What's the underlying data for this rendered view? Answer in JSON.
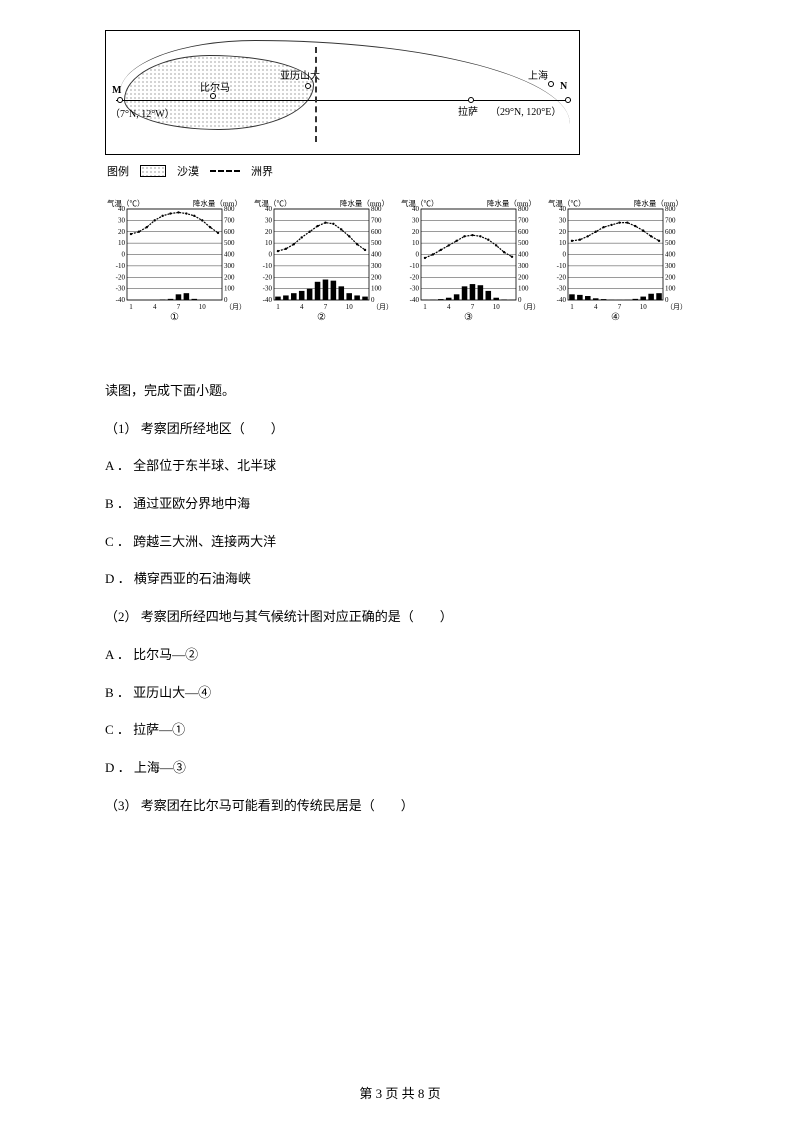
{
  "map": {
    "places": {
      "M": "M",
      "bilma": "比尔马",
      "alexandria": "亚历山大",
      "lhasa": "拉萨",
      "shanghai": "上海",
      "N": "N",
      "coord_left": "（7°N, 12°W）",
      "coord_right": "（29°N, 120°E）"
    },
    "legend": {
      "title": "图例",
      "desert": "沙漠",
      "boundary": "洲界"
    }
  },
  "charts": {
    "temp_axis_label": "气温（℃）",
    "precip_axis_label": "降水量（mm）",
    "x_axis_label": "（月）",
    "temp_ticks": [
      "40",
      "30",
      "20",
      "10",
      "0",
      "-10",
      "-20",
      "-30",
      "-40"
    ],
    "temp_min": -40,
    "temp_max": 40,
    "precip_ticks": [
      "800",
      "700",
      "600",
      "500",
      "400",
      "300",
      "200",
      "100",
      "0"
    ],
    "precip_min": 0,
    "precip_max": 800,
    "x_ticks": [
      "1",
      "4",
      "7",
      "10"
    ],
    "series": [
      {
        "id": "①",
        "temp": [
          18,
          20,
          24,
          30,
          34,
          36,
          37,
          36,
          34,
          30,
          24,
          19
        ],
        "precip": [
          0,
          0,
          0,
          0,
          5,
          10,
          50,
          60,
          10,
          0,
          0,
          0
        ]
      },
      {
        "id": "②",
        "temp": [
          3,
          5,
          9,
          15,
          20,
          25,
          28,
          27,
          22,
          16,
          9,
          4
        ],
        "precip": [
          30,
          40,
          60,
          80,
          100,
          160,
          180,
          170,
          120,
          60,
          40,
          30
        ]
      },
      {
        "id": "③",
        "temp": [
          -3,
          0,
          4,
          8,
          12,
          16,
          17,
          16,
          13,
          8,
          2,
          -2
        ],
        "precip": [
          2,
          4,
          8,
          20,
          50,
          120,
          140,
          130,
          80,
          20,
          5,
          3
        ]
      },
      {
        "id": "④",
        "temp": [
          12,
          13,
          16,
          20,
          24,
          26,
          28,
          28,
          25,
          21,
          16,
          12
        ],
        "precip": [
          50,
          45,
          35,
          15,
          8,
          3,
          2,
          3,
          10,
          30,
          55,
          60
        ]
      }
    ],
    "temp_line_color": "#000000",
    "bar_color": "#000000",
    "grid_color": "#000000",
    "background_color": "#ffffff",
    "chart_border_color": "#000000",
    "line_width": 1.2,
    "bar_width": 0.7,
    "tick_fontsize": 7,
    "label_fontsize": 9
  },
  "text": {
    "instruction": "读图，完成下面小题。",
    "q1": "（1） 考察团所经地区（　　）",
    "q1_A": "A ． 全部位于东半球、北半球",
    "q1_B": "B ． 通过亚欧分界地中海",
    "q1_C": "C ． 跨越三大洲、连接两大洋",
    "q1_D": "D ． 横穿西亚的石油海峡",
    "q2": "（2） 考察团所经四地与其气候统计图对应正确的是（　　）",
    "q2_A": "A ． 比尔马—②",
    "q2_B": "B ． 亚历山大—④",
    "q2_C": "C ． 拉萨—①",
    "q2_D": "D ． 上海—③",
    "q3": "（3） 考察团在比尔马可能看到的传统民居是（　　）"
  },
  "footer": "第 3 页 共 8 页"
}
